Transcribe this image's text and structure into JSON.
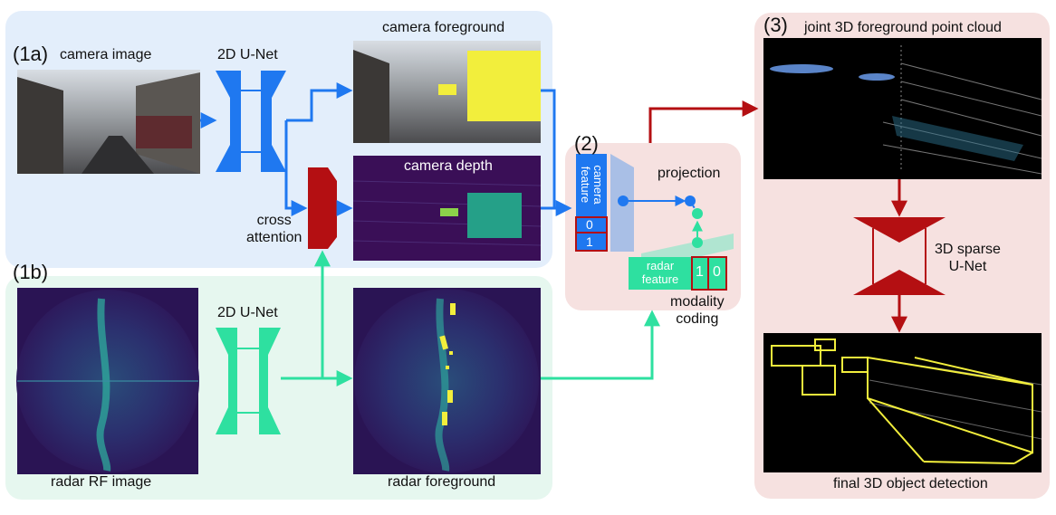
{
  "sections": {
    "s1a": "(1a)",
    "s1b": "(1b)",
    "s2": "(2)",
    "s3": "(3)"
  },
  "labels": {
    "camera_image": "camera image",
    "unet_2d_camera": "2D U-Net",
    "camera_foreground": "camera foreground",
    "camera_depth": "camera depth",
    "cross_attention": "cross\nattention",
    "radar_rf_image": "radar RF image",
    "unet_2d_radar": "2D U-Net",
    "radar_foreground": "radar foreground",
    "projection": "projection",
    "camera_feature": "camera\nfeature",
    "radar_feature": "radar\nfeature",
    "modality_coding": "modality\ncoding",
    "code_cam_0": "0",
    "code_cam_1": "1",
    "code_radar_1": "1",
    "code_radar_0": "0",
    "joint_point_cloud": "joint 3D foreground point cloud",
    "sparse_unet": "3D sparse\nU-Net",
    "final_detection": "final 3D object detection"
  },
  "colors": {
    "camera_bg": "#e3eefb",
    "radar_bg": "#e6f7ef",
    "fusion_bg": "#f6e1e0",
    "camera_blue": "#1f78f0",
    "radar_green": "#2ee0a0",
    "attention_red": "#b40f12",
    "box_yellow": "#f2ee3c"
  }
}
